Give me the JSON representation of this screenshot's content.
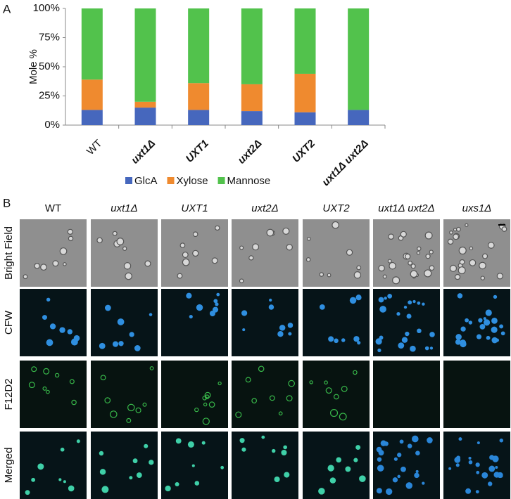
{
  "panel_labels": [
    "A",
    "B"
  ],
  "chart_data": {
    "type": "stacked-bar",
    "y_label": "Mole %",
    "categories": [
      "WT",
      "uxt1Δ",
      "UXT1",
      "uxt2Δ",
      "UXT2",
      "uxt1Δ uxt2Δ"
    ],
    "series": [
      {
        "name": "GlcA",
        "color": "#4667bd",
        "values": [
          13,
          15,
          13,
          12,
          11,
          13
        ]
      },
      {
        "name": "Xylose",
        "color": "#ef8a2f",
        "values": [
          26,
          5,
          23,
          23,
          33,
          0
        ]
      },
      {
        "name": "Mannose",
        "color": "#52c24c",
        "values": [
          61,
          80,
          64,
          65,
          56,
          87
        ]
      }
    ],
    "ylim": [
      0,
      100
    ],
    "yticks": [
      {
        "value": 0,
        "label": "0%"
      },
      {
        "value": 25,
        "label": "25%"
      },
      {
        "value": 50,
        "label": "50%"
      },
      {
        "value": 75,
        "label": "75%"
      },
      {
        "value": 100,
        "label": "100%"
      }
    ],
    "legend": "bottom"
  },
  "panel_b": {
    "columns": [
      "WT",
      "uxt1Δ",
      "UXT1",
      "uxt2Δ",
      "UXT2",
      "uxt1Δ uxt2Δ",
      "uxs1Δ"
    ],
    "rows": [
      "Bright Field",
      "CFW",
      "F12D2",
      "Merged"
    ]
  }
}
